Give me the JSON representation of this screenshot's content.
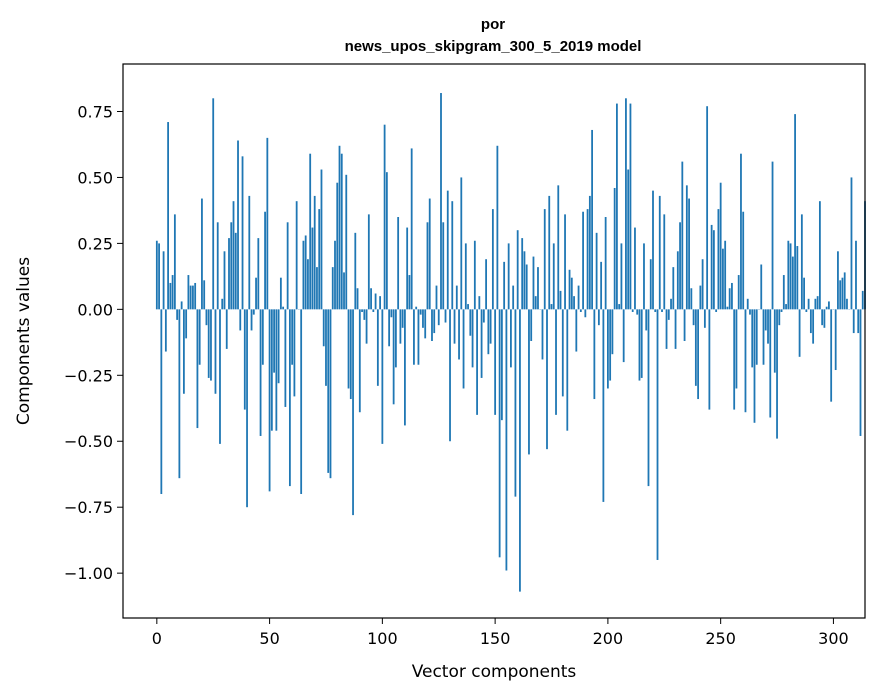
{
  "chart_data": {
    "type": "bar",
    "title_line1": "por",
    "title_line2": "news_upos_skipgram_300_5_2019 model",
    "xlabel": "Vector components",
    "ylabel": "Components values",
    "xlim": [
      -15,
      314
    ],
    "ylim": [
      -1.17,
      0.93
    ],
    "x_ticks": [
      0,
      50,
      100,
      150,
      200,
      250,
      300
    ],
    "x_tick_labels": [
      "0",
      "50",
      "100",
      "150",
      "200",
      "250",
      "300"
    ],
    "y_ticks": [
      0.75,
      0.5,
      0.25,
      0.0,
      -0.25,
      -0.5,
      -0.75,
      -1.0
    ],
    "y_tick_labels": [
      "0.75",
      "0.50",
      "0.25",
      "0.00",
      "−0.25",
      "−0.50",
      "−0.75",
      "−1.00"
    ],
    "bar_color": "#1f77b4",
    "values": [
      0.26,
      0.25,
      -0.7,
      0.22,
      -0.16,
      0.71,
      0.1,
      0.13,
      0.36,
      -0.04,
      -0.64,
      0.03,
      -0.32,
      -0.11,
      0.13,
      0.09,
      0.09,
      0.1,
      -0.45,
      -0.21,
      0.42,
      0.11,
      -0.06,
      -0.26,
      -0.27,
      0.8,
      -0.32,
      0.33,
      -0.51,
      0.04,
      0.22,
      -0.15,
      0.27,
      0.33,
      0.41,
      0.29,
      0.64,
      -0.08,
      0.58,
      -0.38,
      -0.75,
      0.43,
      -0.08,
      -0.02,
      0.12,
      0.27,
      -0.48,
      -0.21,
      0.37,
      0.65,
      -0.69,
      -0.46,
      -0.24,
      -0.46,
      -0.28,
      0.12,
      0.01,
      -0.37,
      0.33,
      -0.67,
      -0.21,
      -0.33,
      0.41,
      0.0,
      -0.7,
      0.26,
      0.28,
      0.19,
      0.59,
      0.31,
      0.43,
      0.16,
      0.38,
      0.53,
      -0.14,
      -0.29,
      -0.62,
      -0.64,
      0.16,
      0.26,
      0.48,
      0.62,
      0.59,
      0.14,
      0.51,
      -0.3,
      -0.34,
      -0.78,
      0.29,
      0.08,
      -0.39,
      -0.01,
      -0.04,
      -0.13,
      0.36,
      0.08,
      -0.01,
      0.06,
      -0.29,
      0.05,
      -0.51,
      0.7,
      0.52,
      -0.14,
      -0.03,
      -0.36,
      -0.22,
      0.35,
      -0.13,
      -0.07,
      -0.44,
      0.31,
      0.13,
      0.61,
      -0.21,
      0.01,
      -0.21,
      -0.02,
      -0.07,
      -0.11,
      0.33,
      0.42,
      -0.12,
      -0.09,
      0.09,
      -0.06,
      0.82,
      0.33,
      -0.05,
      0.45,
      -0.5,
      0.41,
      -0.13,
      0.09,
      -0.19,
      0.5,
      -0.3,
      0.25,
      0.02,
      -0.1,
      -0.22,
      0.26,
      -0.4,
      0.05,
      -0.26,
      -0.05,
      0.19,
      -0.17,
      -0.13,
      0.38,
      -0.4,
      0.62,
      -0.94,
      -0.42,
      0.18,
      -0.99,
      0.25,
      -0.22,
      0.09,
      -0.71,
      0.3,
      -1.07,
      0.27,
      0.22,
      0.17,
      -0.55,
      -0.12,
      0.2,
      0.05,
      0.16,
      0.0,
      -0.19,
      0.38,
      -0.53,
      0.43,
      0.02,
      0.25,
      -0.4,
      0.47,
      0.07,
      -0.33,
      0.36,
      -0.46,
      0.15,
      0.12,
      0.05,
      -0.16,
      0.09,
      -0.01,
      0.37,
      -0.03,
      0.38,
      0.43,
      0.68,
      -0.34,
      0.29,
      -0.06,
      0.18,
      -0.73,
      0.35,
      -0.3,
      -0.27,
      -0.17,
      0.46,
      0.78,
      0.02,
      0.25,
      -0.2,
      0.8,
      0.53,
      0.78,
      -0.01,
      0.31,
      -0.02,
      -0.27,
      -0.26,
      0.25,
      -0.08,
      -0.67,
      0.19,
      0.45,
      -0.01,
      -0.95,
      0.43,
      -0.01,
      0.36,
      -0.15,
      -0.04,
      0.04,
      0.16,
      -0.15,
      0.22,
      0.33,
      0.56,
      -0.12,
      0.47,
      0.42,
      0.08,
      -0.06,
      -0.29,
      -0.34,
      0.09,
      0.19,
      -0.07,
      0.77,
      -0.38,
      0.32,
      0.3,
      -0.01,
      0.38,
      0.48,
      0.23,
      0.26,
      0.01,
      0.08,
      0.1,
      -0.38,
      -0.3,
      0.13,
      0.59,
      0.37,
      -0.39,
      0.04,
      -0.02,
      -0.22,
      -0.43,
      -0.21,
      0.0,
      0.17,
      -0.21,
      -0.08,
      -0.13,
      -0.41,
      0.56,
      -0.24,
      -0.49,
      -0.06,
      -0.01,
      0.13,
      0.02,
      0.26,
      0.25,
      0.2,
      0.74,
      0.24,
      -0.18,
      0.36,
      0.12,
      -0.01,
      0.04,
      -0.09,
      -0.13,
      0.04,
      0.05,
      0.41,
      -0.06,
      -0.07,
      0.01,
      0.03,
      -0.35,
      0.0,
      -0.23,
      0.22,
      0.11,
      0.12,
      0.14,
      0.04,
      0.0,
      0.5,
      -0.09,
      0.26,
      -0.09,
      -0.48,
      0.07,
      0.41
    ]
  }
}
